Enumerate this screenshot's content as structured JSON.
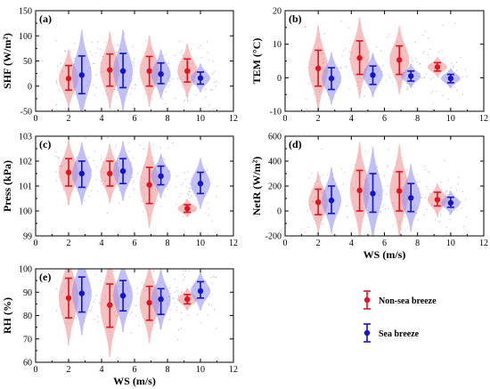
{
  "colors": {
    "non_sea": "#e0141e",
    "sea": "#1414c8",
    "non_sea_fill": "#f08c8c",
    "sea_fill": "#8c8cf0",
    "scatter": "#9a9a9a"
  },
  "legend": {
    "non_sea": "Non-sea breeze",
    "sea": "Sea breeze"
  },
  "chart_data": [
    {
      "type": "violin",
      "panel": "(a)",
      "ylabel": "SHF (W/m²)",
      "xlabel": "",
      "xlim": [
        0,
        12
      ],
      "xticks": [
        "0",
        "2",
        "4",
        "6",
        "8",
        "10",
        "12"
      ],
      "ylim": [
        -50,
        150
      ],
      "yticks": [
        "-50",
        "0",
        "50",
        "100",
        "150"
      ],
      "series": [
        {
          "name": "Non-sea breeze",
          "x": [
            2.0,
            4.5,
            6.9,
            9.2
          ],
          "mean": [
            15,
            32,
            30,
            30
          ],
          "lower": [
            -8,
            0,
            0,
            8
          ],
          "upper": [
            41,
            64,
            59,
            54
          ]
        },
        {
          "name": "Sea breeze",
          "x": [
            2.8,
            5.3,
            7.6,
            10.0
          ],
          "mean": [
            22,
            30,
            24,
            16
          ],
          "lower": [
            -15,
            -3,
            5,
            4
          ],
          "upper": [
            60,
            65,
            46,
            28
          ]
        }
      ]
    },
    {
      "type": "violin",
      "panel": "(b)",
      "ylabel": "TEM (°C)",
      "xlabel": "",
      "xlim": [
        0,
        12
      ],
      "xticks": [
        "0",
        "2",
        "4",
        "6",
        "8",
        "10",
        "12"
      ],
      "ylim": [
        -10,
        20
      ],
      "yticks": [
        "-10",
        "0",
        "10",
        "20"
      ],
      "series": [
        {
          "name": "Non-sea breeze",
          "x": [
            2.0,
            4.5,
            6.9,
            9.2
          ],
          "mean": [
            2.8,
            5.9,
            5.3,
            3.2
          ],
          "lower": [
            -2.5,
            1.0,
            1.0,
            2.0
          ],
          "upper": [
            8.2,
            11.0,
            9.5,
            4.5
          ]
        },
        {
          "name": "Sea breeze",
          "x": [
            2.8,
            5.3,
            7.6,
            10.0
          ],
          "mean": [
            -0.2,
            0.8,
            0.5,
            -0.2
          ],
          "lower": [
            -3.5,
            -2.0,
            -1.0,
            -1.5
          ],
          "upper": [
            3.0,
            3.5,
            2.0,
            1.0
          ]
        }
      ]
    },
    {
      "type": "violin",
      "panel": "(c)",
      "ylabel": "Press (kPa)",
      "xlabel": "",
      "xlim": [
        0,
        12
      ],
      "xticks": [
        "0",
        "2",
        "4",
        "6",
        "8",
        "10",
        "12"
      ],
      "ylim": [
        99,
        103
      ],
      "yticks": [
        "99",
        "100",
        "101",
        "102",
        "103"
      ],
      "series": [
        {
          "name": "Non-sea breeze",
          "x": [
            2.0,
            4.5,
            6.9,
            9.2
          ],
          "mean": [
            101.55,
            101.5,
            101.05,
            100.1
          ],
          "lower": [
            101.0,
            101.0,
            100.3,
            99.95
          ],
          "upper": [
            102.1,
            102.0,
            101.75,
            100.25
          ]
        },
        {
          "name": "Sea breeze",
          "x": [
            2.8,
            5.3,
            7.6,
            10.0
          ],
          "mean": [
            101.5,
            101.6,
            101.4,
            101.1
          ],
          "lower": [
            100.95,
            101.1,
            101.05,
            100.7
          ],
          "upper": [
            102.0,
            102.1,
            101.8,
            101.55
          ]
        }
      ]
    },
    {
      "type": "violin",
      "panel": "(d)",
      "ylabel": "NetR (W/m²)",
      "xlabel": "WS (m/s)",
      "xlim": [
        0,
        12
      ],
      "xticks": [
        "0",
        "2",
        "4",
        "6",
        "8",
        "10",
        "12"
      ],
      "ylim": [
        -200,
        600
      ],
      "yticks": [
        "-200",
        "0",
        "200",
        "400",
        "600"
      ],
      "series": [
        {
          "name": "Non-sea breeze",
          "x": [
            2.0,
            4.5,
            6.9,
            9.2
          ],
          "mean": [
            70,
            165,
            160,
            90
          ],
          "lower": [
            -30,
            0,
            0,
            40
          ],
          "upper": [
            175,
            325,
            315,
            150
          ]
        },
        {
          "name": "Sea breeze",
          "x": [
            2.8,
            5.3,
            7.6,
            10.0
          ],
          "mean": [
            85,
            140,
            105,
            65
          ],
          "lower": [
            -20,
            -10,
            -5,
            30
          ],
          "upper": [
            200,
            300,
            220,
            110
          ]
        }
      ]
    },
    {
      "type": "violin",
      "panel": "(e)",
      "ylabel": "RH (%)",
      "xlabel": "WS (m/s)",
      "xlim": [
        0,
        12
      ],
      "xticks": [
        "0",
        "2",
        "4",
        "6",
        "8",
        "10",
        "12"
      ],
      "ylim": [
        60,
        100
      ],
      "yticks": [
        "60",
        "70",
        "80",
        "90",
        "100"
      ],
      "series": [
        {
          "name": "Non-sea breeze",
          "x": [
            2.0,
            4.5,
            6.9,
            9.2
          ],
          "mean": [
            87.5,
            84.5,
            85.5,
            87.0
          ],
          "lower": [
            79,
            75,
            78,
            85
          ],
          "upper": [
            96,
            93.5,
            92.5,
            89
          ]
        },
        {
          "name": "Sea breeze",
          "x": [
            2.8,
            5.3,
            7.6,
            10.0
          ],
          "mean": [
            89.5,
            88.5,
            87.0,
            90.5
          ],
          "lower": [
            81.5,
            82,
            80.5,
            87.5
          ],
          "upper": [
            96.5,
            95,
            91.5,
            94.5
          ]
        }
      ]
    }
  ]
}
